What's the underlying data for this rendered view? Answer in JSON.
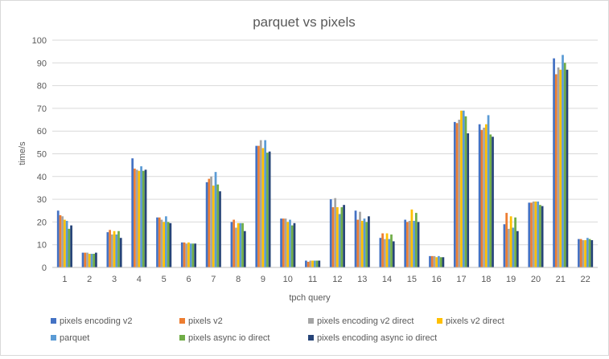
{
  "chart_data": {
    "type": "bar",
    "title": "parquet vs pixels",
    "xlabel": "tpch query",
    "ylabel": "time/s",
    "ylim": [
      0,
      100
    ],
    "yticks": [
      0,
      10,
      20,
      30,
      40,
      50,
      60,
      70,
      80,
      90,
      100
    ],
    "grid": true,
    "legend_position": "bottom",
    "categories": [
      "1",
      "2",
      "3",
      "4",
      "5",
      "6",
      "7",
      "8",
      "9",
      "10",
      "11",
      "12",
      "13",
      "14",
      "15",
      "16",
      "17",
      "18",
      "19",
      "20",
      "21",
      "22"
    ],
    "series": [
      {
        "name": "pixels encoding v2",
        "color": "#4472C4",
        "values": [
          25,
          6.5,
          15.5,
          48,
          22,
          11,
          37.5,
          20,
          53.5,
          21.5,
          3,
          30,
          25,
          13,
          21,
          5,
          64,
          63,
          19,
          28.5,
          92,
          12.5
        ]
      },
      {
        "name": "pixels v2",
        "color": "#ED7D31",
        "values": [
          23,
          6.5,
          16.5,
          43.5,
          22,
          11,
          39,
          21,
          53.5,
          21.5,
          2.5,
          26.5,
          21,
          15,
          20,
          5,
          63.5,
          60.5,
          24,
          28.5,
          85,
          12.5
        ]
      },
      {
        "name": "pixels encoding v2 direct",
        "color": "#A5A5A5",
        "values": [
          22.5,
          6.5,
          14.5,
          43,
          21,
          10.5,
          40,
          17.5,
          56,
          21.5,
          3,
          30.5,
          24.5,
          12.5,
          20.5,
          5,
          65,
          61.5,
          17,
          29,
          88,
          12
        ]
      },
      {
        "name": "pixels v2 direct",
        "color": "#FFC000",
        "values": [
          21,
          6,
          16,
          42.5,
          20,
          11,
          36,
          19.5,
          52.5,
          20,
          3,
          26.5,
          20.5,
          15,
          25.5,
          4.5,
          69,
          63,
          22.5,
          29,
          87,
          12
        ]
      },
      {
        "name": "parquet",
        "color": "#5B9BD5",
        "values": [
          20.5,
          6,
          14.5,
          44.5,
          22.5,
          10.5,
          42,
          19.5,
          56,
          21,
          3,
          23.5,
          21.5,
          12.5,
          20.5,
          5,
          69,
          67,
          17.5,
          29,
          93.5,
          13
        ]
      },
      {
        "name": "pixels async io direct",
        "color": "#70AD47",
        "values": [
          17,
          6,
          16,
          42.5,
          20,
          10.5,
          36.5,
          19.5,
          50.5,
          18.5,
          3,
          26.5,
          20,
          14.5,
          24,
          4.5,
          66.5,
          58.5,
          22,
          27.5,
          90,
          12.5
        ]
      },
      {
        "name": "pixels encoding async io direct",
        "color": "#264478",
        "values": [
          18.5,
          6.5,
          13,
          43,
          19.5,
          10.5,
          33.5,
          16,
          51,
          19.5,
          3,
          27.5,
          22.5,
          11.5,
          20,
          4.5,
          59,
          57.5,
          16,
          27,
          87,
          12
        ]
      }
    ]
  }
}
